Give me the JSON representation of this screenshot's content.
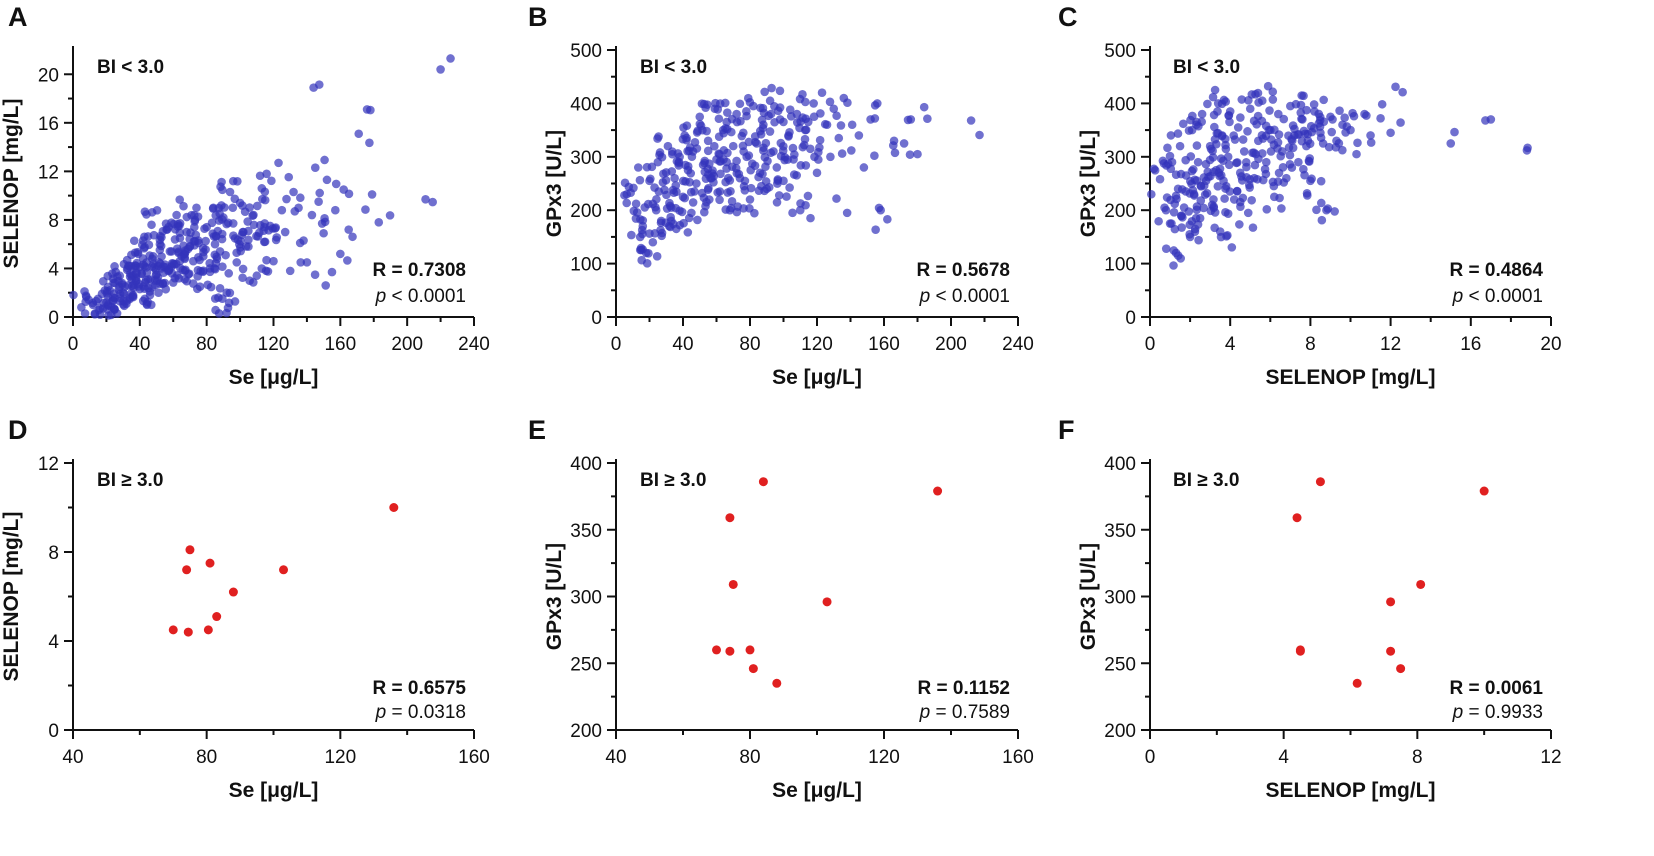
{
  "figure": {
    "description_ignored": false
  },
  "chart_data": [
    {
      "type": "scatter",
      "panel": "A",
      "group_label": "BI < 3.0",
      "xlabel": "Se [μg/L]",
      "ylabel": "SELENOP [mg/L]",
      "xlim": [
        0,
        240
      ],
      "ylim": [
        0,
        22
      ],
      "xticks": [
        0,
        40,
        80,
        120,
        160,
        200,
        240
      ],
      "yticks": [
        0,
        4,
        8,
        12,
        16,
        20
      ],
      "stat_r": "R = 0.7308",
      "stat_p_symbol": "p",
      "stat_p_rest": " < 0.0001",
      "color": "#3333bb",
      "opacity": 0.7,
      "sampled_cloud": true,
      "points": [
        [
          5,
          0.8
        ],
        [
          12,
          1.0
        ],
        [
          15,
          1.5
        ],
        [
          18,
          0.7
        ],
        [
          20,
          1.2
        ],
        [
          22,
          2.2
        ],
        [
          24,
          1.6
        ],
        [
          25,
          2.8
        ],
        [
          28,
          1.3
        ],
        [
          28,
          3.4
        ],
        [
          30,
          2.0
        ],
        [
          32,
          1.1
        ],
        [
          33,
          2.6
        ],
        [
          35,
          4.2
        ],
        [
          36,
          1.8
        ],
        [
          38,
          3.0
        ],
        [
          39,
          5.2
        ],
        [
          40,
          2.3
        ],
        [
          41,
          3.6
        ],
        [
          42,
          6.3
        ],
        [
          43,
          1.5
        ],
        [
          44,
          4.5
        ],
        [
          45,
          3.1
        ],
        [
          46,
          2.1
        ],
        [
          47,
          7.6
        ],
        [
          48,
          5.0
        ],
        [
          50,
          3.5
        ],
        [
          52,
          6.0
        ],
        [
          53,
          4.0
        ],
        [
          55,
          2.8
        ],
        [
          56,
          7.2
        ],
        [
          58,
          5.4
        ],
        [
          60,
          4.4
        ],
        [
          61,
          3.2
        ],
        [
          62,
          8.4
        ],
        [
          64,
          6.5
        ],
        [
          65,
          5.0
        ],
        [
          67,
          3.8
        ],
        [
          68,
          7.0
        ],
        [
          70,
          5.8
        ],
        [
          72,
          4.6
        ],
        [
          73,
          8.0
        ],
        [
          75,
          6.3
        ],
        [
          76,
          2.5
        ],
        [
          78,
          5.0
        ],
        [
          80,
          7.4
        ],
        [
          82,
          4.0
        ],
        [
          84,
          9.0
        ],
        [
          85,
          6.0
        ],
        [
          87,
          1.6
        ],
        [
          88,
          5.4
        ],
        [
          90,
          8.2
        ],
        [
          92,
          2.0
        ],
        [
          94,
          10.3
        ],
        [
          96,
          6.7
        ],
        [
          98,
          4.5
        ],
        [
          100,
          9.4
        ],
        [
          102,
          7.0
        ],
        [
          105,
          5.8
        ],
        [
          108,
          8.4
        ],
        [
          110,
          3.4
        ],
        [
          113,
          10.6
        ],
        [
          115,
          6.2
        ],
        [
          118,
          7.5
        ],
        [
          120,
          4.6
        ],
        [
          123,
          12.7
        ],
        [
          125,
          8.8
        ],
        [
          127,
          7.0
        ],
        [
          130,
          3.8
        ],
        [
          132,
          10.3
        ],
        [
          135,
          9.0
        ],
        [
          138,
          6.3
        ],
        [
          140,
          4.5
        ],
        [
          143,
          8.4
        ],
        [
          145,
          12.3
        ],
        [
          147,
          9.5
        ],
        [
          150,
          6.9
        ],
        [
          152,
          11.3
        ],
        [
          155,
          3.7
        ],
        [
          157,
          8.8
        ],
        [
          160,
          5.2
        ],
        [
          162,
          10.5
        ],
        [
          165,
          7.2
        ],
        [
          144,
          18.9
        ],
        [
          171,
          15.1
        ],
        [
          176,
          17.1
        ],
        [
          179,
          10.1
        ],
        [
          183,
          7.8
        ],
        [
          211,
          9.7
        ],
        [
          220,
          20.4
        ]
      ]
    },
    {
      "type": "scatter",
      "panel": "B",
      "group_label": "BI < 3.0",
      "xlabel": "Se [μg/L]",
      "ylabel": "GPx3 [U/L]",
      "xlim": [
        0,
        240
      ],
      "ylim": [
        0,
        500
      ],
      "xticks": [
        0,
        40,
        80,
        120,
        160,
        200,
        240
      ],
      "yticks": [
        0,
        100,
        200,
        300,
        400,
        500
      ],
      "stat_r": "R = 0.5678",
      "stat_p_symbol": "p",
      "stat_p_rest": " < 0.0001",
      "color": "#3333bb",
      "opacity": 0.7,
      "sampled_cloud": true,
      "points": [
        [
          5,
          228
        ],
        [
          12,
          212
        ],
        [
          16,
          170
        ],
        [
          18,
          120
        ],
        [
          20,
          255
        ],
        [
          22,
          140
        ],
        [
          24,
          200
        ],
        [
          25,
          290
        ],
        [
          27,
          180
        ],
        [
          29,
          238
        ],
        [
          31,
          320
        ],
        [
          33,
          205
        ],
        [
          35,
          260
        ],
        [
          36,
          165
        ],
        [
          38,
          300
        ],
        [
          40,
          225
        ],
        [
          41,
          340
        ],
        [
          43,
          275
        ],
        [
          45,
          195
        ],
        [
          46,
          310
        ],
        [
          48,
          250
        ],
        [
          50,
          375
        ],
        [
          52,
          285
        ],
        [
          54,
          215
        ],
        [
          55,
          330
        ],
        [
          57,
          260
        ],
        [
          59,
          390
        ],
        [
          60,
          295
        ],
        [
          62,
          235
        ],
        [
          64,
          350
        ],
        [
          66,
          278
        ],
        [
          68,
          200
        ],
        [
          70,
          320
        ],
        [
          72,
          380
        ],
        [
          74,
          260
        ],
        [
          76,
          345
        ],
        [
          78,
          300
        ],
        [
          80,
          220
        ],
        [
          82,
          395
        ],
        [
          84,
          325
        ],
        [
          86,
          270
        ],
        [
          88,
          360
        ],
        [
          90,
          240
        ],
        [
          92,
          405
        ],
        [
          94,
          310
        ],
        [
          96,
          280
        ],
        [
          98,
          370
        ],
        [
          100,
          255
        ],
        [
          103,
          340
        ],
        [
          106,
          295
        ],
        [
          108,
          380
        ],
        [
          110,
          200
        ],
        [
          113,
          350
        ],
        [
          116,
          315
        ],
        [
          118,
          400
        ],
        [
          120,
          270
        ],
        [
          123,
          420
        ],
        [
          126,
          360
        ],
        [
          128,
          300
        ],
        [
          130,
          390
        ],
        [
          133,
          335
        ],
        [
          136,
          410
        ],
        [
          138,
          195
        ],
        [
          141,
          360
        ],
        [
          145,
          340
        ],
        [
          148,
          280
        ],
        [
          152,
          370
        ],
        [
          156,
          400
        ],
        [
          158,
          200
        ],
        [
          162,
          183
        ],
        [
          166,
          330
        ],
        [
          172,
          325
        ],
        [
          176,
          370
        ],
        [
          180,
          305
        ],
        [
          184,
          393
        ],
        [
          212,
          368
        ]
      ]
    },
    {
      "type": "scatter",
      "panel": "C",
      "group_label": "BI < 3.0",
      "xlabel": "SELENOP [mg/L]",
      "ylabel": "GPx3 [U/L]",
      "xlim": [
        0,
        20
      ],
      "ylim": [
        0,
        500
      ],
      "xticks": [
        0,
        4,
        8,
        12,
        16,
        20
      ],
      "yticks": [
        0,
        100,
        200,
        300,
        400,
        500
      ],
      "stat_r": "R = 0.4864",
      "stat_p_symbol": "p",
      "stat_p_rest": " < 0.0001",
      "color": "#3333bb",
      "opacity": 0.7,
      "sampled_cloud": true,
      "points": [
        [
          0.5,
          258
        ],
        [
          0.8,
          200
        ],
        [
          1.0,
          175
        ],
        [
          1.1,
          290
        ],
        [
          1.3,
          120
        ],
        [
          1.4,
          240
        ],
        [
          1.5,
          320
        ],
        [
          1.7,
          205
        ],
        [
          1.8,
          265
        ],
        [
          2.0,
          150
        ],
        [
          2.1,
          350
        ],
        [
          2.2,
          230
        ],
        [
          2.4,
          290
        ],
        [
          2.5,
          185
        ],
        [
          2.6,
          380
        ],
        [
          2.8,
          255
        ],
        [
          3.0,
          320
        ],
        [
          3.1,
          210
        ],
        [
          3.3,
          275
        ],
        [
          3.4,
          400
        ],
        [
          3.5,
          160
        ],
        [
          3.6,
          340
        ],
        [
          3.8,
          245
        ],
        [
          3.9,
          300
        ],
        [
          4.0,
          385
        ],
        [
          4.2,
          220
        ],
        [
          4.4,
          355
        ],
        [
          4.5,
          270
        ],
        [
          4.7,
          310
        ],
        [
          4.9,
          195
        ],
        [
          5.0,
          390
        ],
        [
          5.2,
          260
        ],
        [
          5.4,
          330
        ],
        [
          5.6,
          405
        ],
        [
          5.8,
          290
        ],
        [
          6.0,
          350
        ],
        [
          6.2,
          225
        ],
        [
          6.4,
          380
        ],
        [
          6.6,
          310
        ],
        [
          6.8,
          260
        ],
        [
          7.0,
          395
        ],
        [
          7.2,
          340
        ],
        [
          7.4,
          290
        ],
        [
          7.6,
          370
        ],
        [
          7.8,
          320
        ],
        [
          8.0,
          255
        ],
        [
          8.2,
          385
        ],
        [
          8.5,
          345
        ],
        [
          8.8,
          200
        ],
        [
          9.0,
          375
        ],
        [
          9.3,
          330
        ],
        [
          9.6,
          360
        ],
        [
          10.0,
          350
        ],
        [
          10.3,
          305
        ],
        [
          10.7,
          380
        ],
        [
          11.0,
          340
        ],
        [
          11.5,
          372
        ],
        [
          12.0,
          345
        ],
        [
          12.6,
          421
        ],
        [
          15.0,
          325
        ],
        [
          17.0,
          370
        ],
        [
          18.8,
          312
        ]
      ]
    },
    {
      "type": "scatter",
      "panel": "D",
      "group_label": "BI ≥ 3.0",
      "xlabel": "Se [μg/L]",
      "ylabel": "SELENOP [mg/L]",
      "xlim": [
        40,
        160
      ],
      "ylim": [
        0,
        12
      ],
      "xticks": [
        40,
        80,
        120,
        160
      ],
      "yticks": [
        0,
        4,
        8,
        12
      ],
      "stat_r": "R = 0.6575",
      "stat_p_symbol": "p",
      "stat_p_rest": " = 0.0318",
      "color": "#e02020",
      "opacity": 1,
      "sampled_cloud": false,
      "points": [
        [
          70,
          4.5
        ],
        [
          74,
          7.2
        ],
        [
          74.5,
          4.4
        ],
        [
          75,
          8.1
        ],
        [
          80.5,
          4.5
        ],
        [
          81,
          7.5
        ],
        [
          83,
          5.1
        ],
        [
          88,
          6.2
        ],
        [
          103,
          7.2
        ],
        [
          136,
          10.0
        ]
      ]
    },
    {
      "type": "scatter",
      "panel": "E",
      "group_label": "BI ≥ 3.0",
      "xlabel": "Se [μg/L]",
      "ylabel": "GPx3 [U/L]",
      "xlim": [
        40,
        160
      ],
      "ylim": [
        200,
        400
      ],
      "xticks": [
        40,
        80,
        120,
        160
      ],
      "yticks": [
        200,
        250,
        300,
        350,
        400
      ],
      "stat_r": "R = 0.1152",
      "stat_p_symbol": "p",
      "stat_p_rest": " = 0.7589",
      "color": "#e02020",
      "opacity": 1,
      "sampled_cloud": false,
      "points": [
        [
          70,
          260
        ],
        [
          74,
          359
        ],
        [
          74,
          259
        ],
        [
          75,
          309
        ],
        [
          80,
          260
        ],
        [
          81,
          246
        ],
        [
          84,
          386
        ],
        [
          88,
          235
        ],
        [
          103,
          296
        ],
        [
          136,
          379
        ]
      ]
    },
    {
      "type": "scatter",
      "panel": "F",
      "group_label": "BI ≥ 3.0",
      "xlabel": "SELENOP [mg/L]",
      "ylabel": "GPx3 [U/L]",
      "xlim": [
        0,
        12
      ],
      "ylim": [
        200,
        400
      ],
      "xticks": [
        0,
        4,
        8,
        12
      ],
      "yticks": [
        200,
        250,
        300,
        350,
        400
      ],
      "stat_r": "R = 0.0061",
      "stat_p_symbol": "p",
      "stat_p_rest": " = 0.9933",
      "color": "#e02020",
      "opacity": 1,
      "sampled_cloud": false,
      "points": [
        [
          4.4,
          359
        ],
        [
          4.5,
          260
        ],
        [
          4.5,
          259
        ],
        [
          5.1,
          386
        ],
        [
          6.2,
          235
        ],
        [
          7.2,
          296
        ],
        [
          7.2,
          259
        ],
        [
          7.5,
          246
        ],
        [
          8.1,
          309
        ],
        [
          10.0,
          379
        ]
      ]
    }
  ]
}
